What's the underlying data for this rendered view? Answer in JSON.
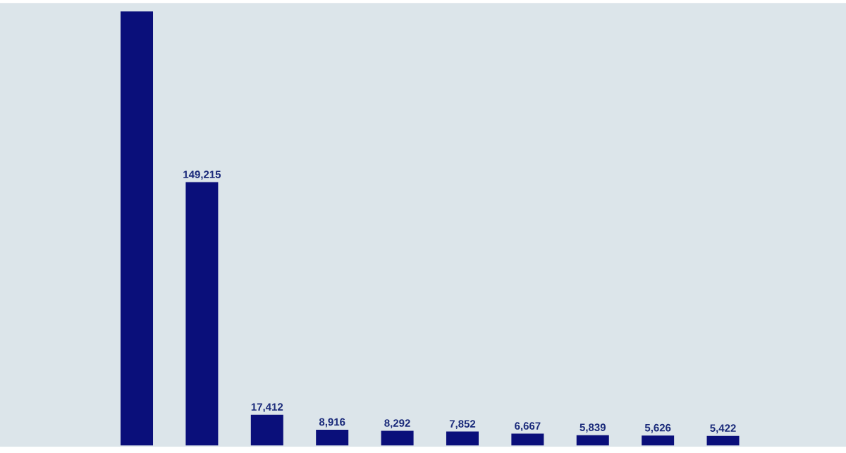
{
  "chart_data": {
    "type": "bar",
    "categories": [
      null,
      null,
      null,
      null,
      null,
      null,
      null,
      null,
      null,
      null
    ],
    "values": [
      246000,
      149215,
      17412,
      8916,
      8292,
      7852,
      6667,
      5839,
      5626,
      5422
    ],
    "value_labels": [
      null,
      "149,215",
      "17,412",
      "8,916",
      "8,292",
      "7,852",
      "6,667",
      "5,839",
      "5,626",
      "5,422"
    ],
    "color": "#0a0f7a"
  }
}
